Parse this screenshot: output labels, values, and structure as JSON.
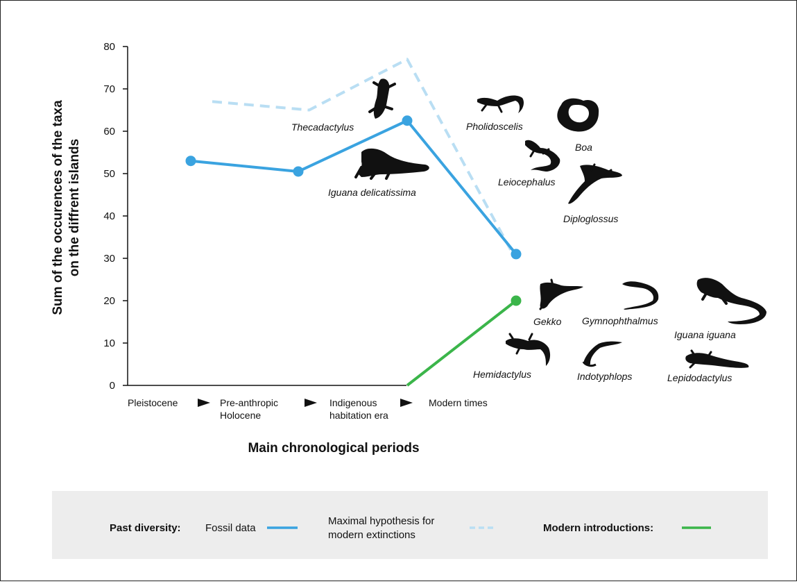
{
  "chart_data": {
    "type": "line",
    "categories": [
      "Pleistocene",
      "Pre-anthropic\nHolocene",
      "Indigenous\nhabitation era",
      "Modern times"
    ],
    "xlabel": "Main chronological periods",
    "ylabel": "Sum of the occurences of the taxa\non the diffrent islands",
    "ylim": [
      0,
      80
    ],
    "yticks": [
      0,
      10,
      20,
      30,
      40,
      50,
      60,
      70,
      80
    ],
    "grid": false,
    "series": [
      {
        "name": "Fossil data",
        "style": "solid",
        "color": "#3aa3e0",
        "markers": true,
        "points": [
          {
            "x": 0,
            "y": 53
          },
          {
            "x": 1,
            "y": 50.5
          },
          {
            "x": 2,
            "y": 62.5
          },
          {
            "x": 3,
            "y": 31
          }
        ]
      },
      {
        "name": "Maximal hypothesis for modern extinctions",
        "style": "dashed",
        "color": "#b9def3",
        "markers": false,
        "points": [
          {
            "x": 0.2,
            "y": 67
          },
          {
            "x": 1.1,
            "y": 65
          },
          {
            "x": 2,
            "y": 77
          },
          {
            "x": 2.95,
            "y": 32
          }
        ]
      },
      {
        "name": "Modern introductions",
        "style": "solid",
        "color": "#3bb54a",
        "markers": "end",
        "points": [
          {
            "x": 2,
            "y": 0
          },
          {
            "x": 3,
            "y": 20
          }
        ]
      }
    ],
    "annotations": {
      "extinct_taxa": [
        "Thecadactylus",
        "Iguana delicatissima",
        "Pholidoscelis",
        "Boa",
        "Leiocephalus",
        "Diploglossus"
      ],
      "introduced_taxa": [
        "Gekko",
        "Gymnophthalmus",
        "Iguana iguana",
        "Hemidactylus",
        "Indotyphlops",
        "Lepidodactylus"
      ]
    }
  },
  "legend": {
    "past_label": "Past diversity:",
    "fossil_label": "Fossil data",
    "hypothesis_label_1": "Maximal hypothesis for",
    "hypothesis_label_2": "modern extinctions",
    "modern_label": "Modern introductions:"
  },
  "colors": {
    "fossil": "#3aa3e0",
    "hypothesis": "#b9def3",
    "modern": "#3bb54a",
    "legend_bg": "#ededed",
    "silhouette": "#111111"
  }
}
